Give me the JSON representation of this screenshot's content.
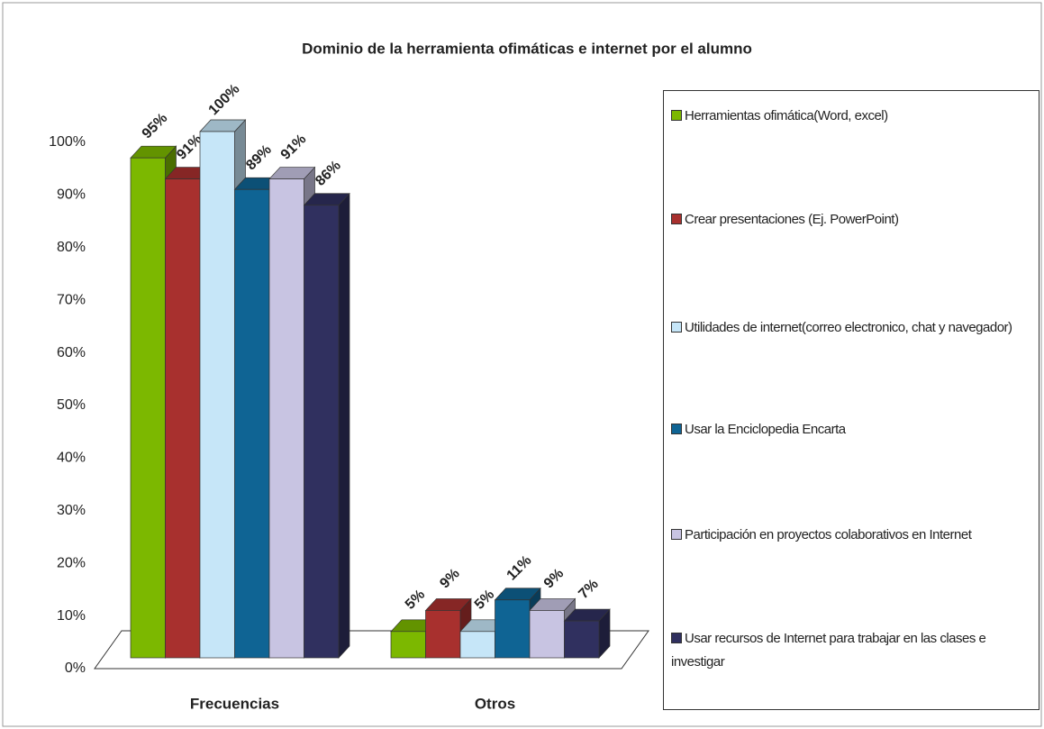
{
  "chart_data": {
    "type": "bar3d",
    "title": "Dominio de la herramienta ofimáticas e internet por el alumno",
    "categories": [
      "Frecuencias",
      "Otros"
    ],
    "series": [
      {
        "name": "Herramientas ofimática(Word, excel)",
        "color": "#7cb800",
        "values": [
          95,
          5
        ],
        "value_labels": [
          "95%",
          "5%"
        ]
      },
      {
        "name": "Crear presentaciones (Ej. PowerPoint)",
        "color": "#a8302e",
        "values": [
          91,
          9
        ],
        "value_labels": [
          "91%",
          "9%"
        ]
      },
      {
        "name": "Utilidades de internet(correo electronico, chat y navegador)",
        "color": "#c6e6f8",
        "values": [
          100,
          5
        ],
        "value_labels": [
          "100%",
          "5%"
        ]
      },
      {
        "name": "Usar la Enciclopedia Encarta",
        "color": "#0f6494",
        "values": [
          89,
          11
        ],
        "value_labels": [
          "89%",
          "11%"
        ]
      },
      {
        "name": "Participación en proyectos colaborativos en Internet",
        "color": "#c8c4e2",
        "values": [
          91,
          9
        ],
        "value_labels": [
          "91%",
          "9%"
        ]
      },
      {
        "name": "Usar recursos de Internet para trabajar en las clases e investigar",
        "color": "#30305f",
        "values": [
          86,
          7
        ],
        "value_labels": [
          "86%",
          "7%"
        ]
      }
    ],
    "ylim": [
      0,
      100
    ],
    "yticks": [
      {
        "value": 0,
        "label": "0%"
      },
      {
        "value": 10,
        "label": "10%"
      },
      {
        "value": 20,
        "label": "20%"
      },
      {
        "value": 30,
        "label": "30%"
      },
      {
        "value": 40,
        "label": "40%"
      },
      {
        "value": 50,
        "label": "50%"
      },
      {
        "value": 60,
        "label": "60%"
      },
      {
        "value": 70,
        "label": "70%"
      },
      {
        "value": 80,
        "label": "80%"
      },
      {
        "value": 90,
        "label": "90%"
      },
      {
        "value": 100,
        "label": "100%"
      }
    ],
    "legend": "right"
  }
}
